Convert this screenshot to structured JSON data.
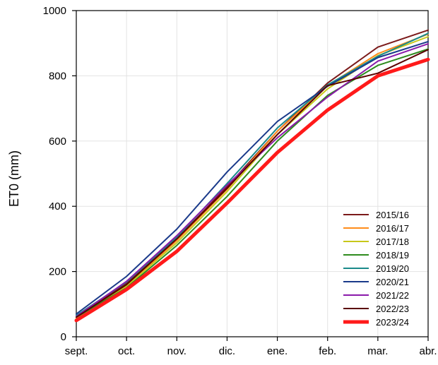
{
  "chart_data": {
    "type": "line",
    "ylabel": "ET0 (mm)",
    "xlabel": "",
    "title": "",
    "categories": [
      "sept.",
      "oct.",
      "nov.",
      "dic.",
      "ene.",
      "feb.",
      "mar.",
      "abr."
    ],
    "ylim": [
      0,
      1000
    ],
    "yticks": [
      0,
      200,
      400,
      600,
      800,
      1000
    ],
    "grid": true,
    "legend_position": "bottom-right",
    "series": [
      {
        "name": "2015/16",
        "color": "#7b1a1a",
        "width": 2,
        "values": [
          62,
          165,
          300,
          460,
          630,
          778,
          888,
          940
        ]
      },
      {
        "name": "2016/17",
        "color": "#ff8c1a",
        "width": 2,
        "values": [
          60,
          158,
          295,
          452,
          630,
          770,
          868,
          928
        ]
      },
      {
        "name": "2017/18",
        "color": "#c8c81a",
        "width": 2,
        "values": [
          58,
          155,
          288,
          445,
          620,
          760,
          862,
          920
        ]
      },
      {
        "name": "2018/19",
        "color": "#2e8b1e",
        "width": 2,
        "values": [
          60,
          150,
          280,
          430,
          600,
          740,
          832,
          882
        ]
      },
      {
        "name": "2019/20",
        "color": "#1a8a8a",
        "width": 2,
        "values": [
          65,
          168,
          305,
          470,
          640,
          772,
          860,
          930
        ]
      },
      {
        "name": "2020/21",
        "color": "#1a3a8a",
        "width": 2,
        "values": [
          70,
          185,
          330,
          505,
          660,
          768,
          856,
          905
        ]
      },
      {
        "name": "2021/22",
        "color": "#8a1aaa",
        "width": 2,
        "values": [
          62,
          170,
          310,
          465,
          610,
          735,
          845,
          898
        ]
      },
      {
        "name": "2022/23",
        "color": "#5a0000",
        "width": 2,
        "values": [
          60,
          160,
          300,
          455,
          620,
          770,
          808,
          880
        ]
      },
      {
        "name": "2023/24",
        "color": "#ff1a1a",
        "width": 5,
        "values": [
          50,
          145,
          262,
          410,
          565,
          695,
          800,
          850
        ]
      }
    ]
  }
}
